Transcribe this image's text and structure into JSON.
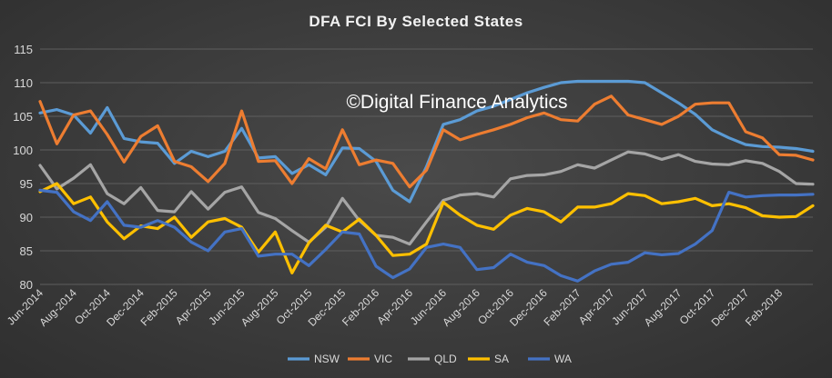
{
  "chart_data": {
    "type": "line",
    "title": "DFA FCI By Selected States",
    "xlabel": "",
    "ylabel": "",
    "ylim": [
      80,
      115
    ],
    "yticks": [
      80,
      85,
      90,
      95,
      100,
      105,
      110,
      115
    ],
    "grid": true,
    "legend_position": "bottom",
    "watermark": "©Digital Finance Analytics",
    "x_tick_labels": [
      "Jun-2014",
      "Aug-2014",
      "Oct-2014",
      "Dec-2014",
      "Feb-2015",
      "Apr-2015",
      "Jun-2015",
      "Aug-2015",
      "Oct-2015",
      "Dec-2015",
      "Feb-2016",
      "Apr-2016",
      "Jun-2016",
      "Aug-2016",
      "Oct-2016",
      "Dec-2016",
      "Feb-2017",
      "Apr-2017",
      "Jun-2017",
      "Aug-2017",
      "Oct-2017",
      "Dec-2017",
      "Feb-2018"
    ],
    "series": [
      {
        "name": "NSW",
        "color": "#5b9bd5",
        "values": [
          105.5,
          106.0,
          105.2,
          102.5,
          106.3,
          101.7,
          101.2,
          101.0,
          98.0,
          99.8,
          99.0,
          99.8,
          103.2,
          98.8,
          99.0,
          96.5,
          97.8,
          96.3,
          100.3,
          100.2,
          98.3,
          94.0,
          92.3,
          97.5,
          103.8,
          104.5,
          105.8,
          106.5,
          107.5,
          108.5,
          109.3,
          110.0,
          110.2,
          110.2,
          110.2,
          110.2,
          110.0,
          108.5,
          107.0,
          105.3,
          103.0,
          101.8,
          100.8,
          100.5,
          100.4,
          100.2,
          99.8
        ]
      },
      {
        "name": "VIC",
        "color": "#ed7d31",
        "values": [
          107.2,
          100.9,
          105.2,
          105.8,
          102.3,
          98.2,
          102.0,
          103.6,
          98.3,
          97.5,
          95.3,
          98.0,
          105.8,
          98.3,
          98.4,
          95.0,
          98.7,
          97.2,
          103.0,
          97.8,
          98.5,
          98.0,
          94.5,
          97.0,
          103.0,
          101.5,
          102.3,
          103.0,
          103.8,
          104.8,
          105.5,
          104.5,
          104.3,
          106.8,
          108.0,
          105.2,
          104.5,
          103.8,
          105.0,
          106.8,
          107.0,
          107.0,
          102.7,
          101.8,
          99.3,
          99.2,
          98.5
        ]
      },
      {
        "name": "QLD",
        "color": "#a5a5a5",
        "values": [
          97.7,
          94.2,
          95.8,
          97.8,
          93.5,
          92.0,
          94.4,
          91.0,
          90.8,
          93.8,
          91.2,
          93.7,
          94.5,
          90.7,
          89.8,
          88.0,
          86.3,
          88.5,
          92.8,
          89.5,
          87.3,
          87.0,
          86.0,
          89.3,
          92.5,
          93.3,
          93.5,
          93.0,
          95.7,
          96.2,
          96.3,
          96.8,
          97.8,
          97.3,
          98.5,
          99.7,
          99.4,
          98.6,
          99.3,
          98.3,
          97.9,
          97.8,
          98.4,
          98.0,
          96.8,
          95.0,
          94.9
        ]
      },
      {
        "name": "SA",
        "color": "#ffc000",
        "values": [
          93.8,
          95.0,
          92.0,
          93.0,
          89.3,
          86.8,
          88.7,
          88.3,
          90.0,
          87.0,
          89.3,
          89.8,
          88.5,
          84.8,
          87.8,
          81.7,
          86.2,
          88.8,
          87.8,
          89.7,
          87.3,
          84.3,
          84.5,
          86.0,
          92.2,
          90.3,
          88.8,
          88.2,
          90.3,
          91.3,
          90.8,
          89.3,
          91.5,
          91.5,
          92.0,
          93.5,
          93.2,
          92.0,
          92.3,
          92.8,
          91.7,
          92.0,
          91.4,
          90.2,
          90.0,
          90.1,
          91.7
        ]
      },
      {
        "name": "WA",
        "color": "#4472c4",
        "values": [
          94.0,
          93.7,
          90.8,
          89.5,
          92.3,
          88.8,
          88.5,
          89.5,
          88.5,
          86.3,
          85.0,
          87.8,
          88.3,
          84.2,
          84.5,
          84.5,
          82.8,
          85.2,
          87.8,
          87.5,
          82.7,
          81.0,
          82.3,
          85.5,
          86.0,
          85.5,
          82.2,
          82.5,
          84.5,
          83.3,
          82.8,
          81.3,
          80.5,
          82.0,
          83.0,
          83.3,
          84.7,
          84.4,
          84.6,
          86.0,
          88.0,
          93.7,
          93.0,
          93.2,
          93.3,
          93.3,
          93.4
        ]
      }
    ]
  }
}
